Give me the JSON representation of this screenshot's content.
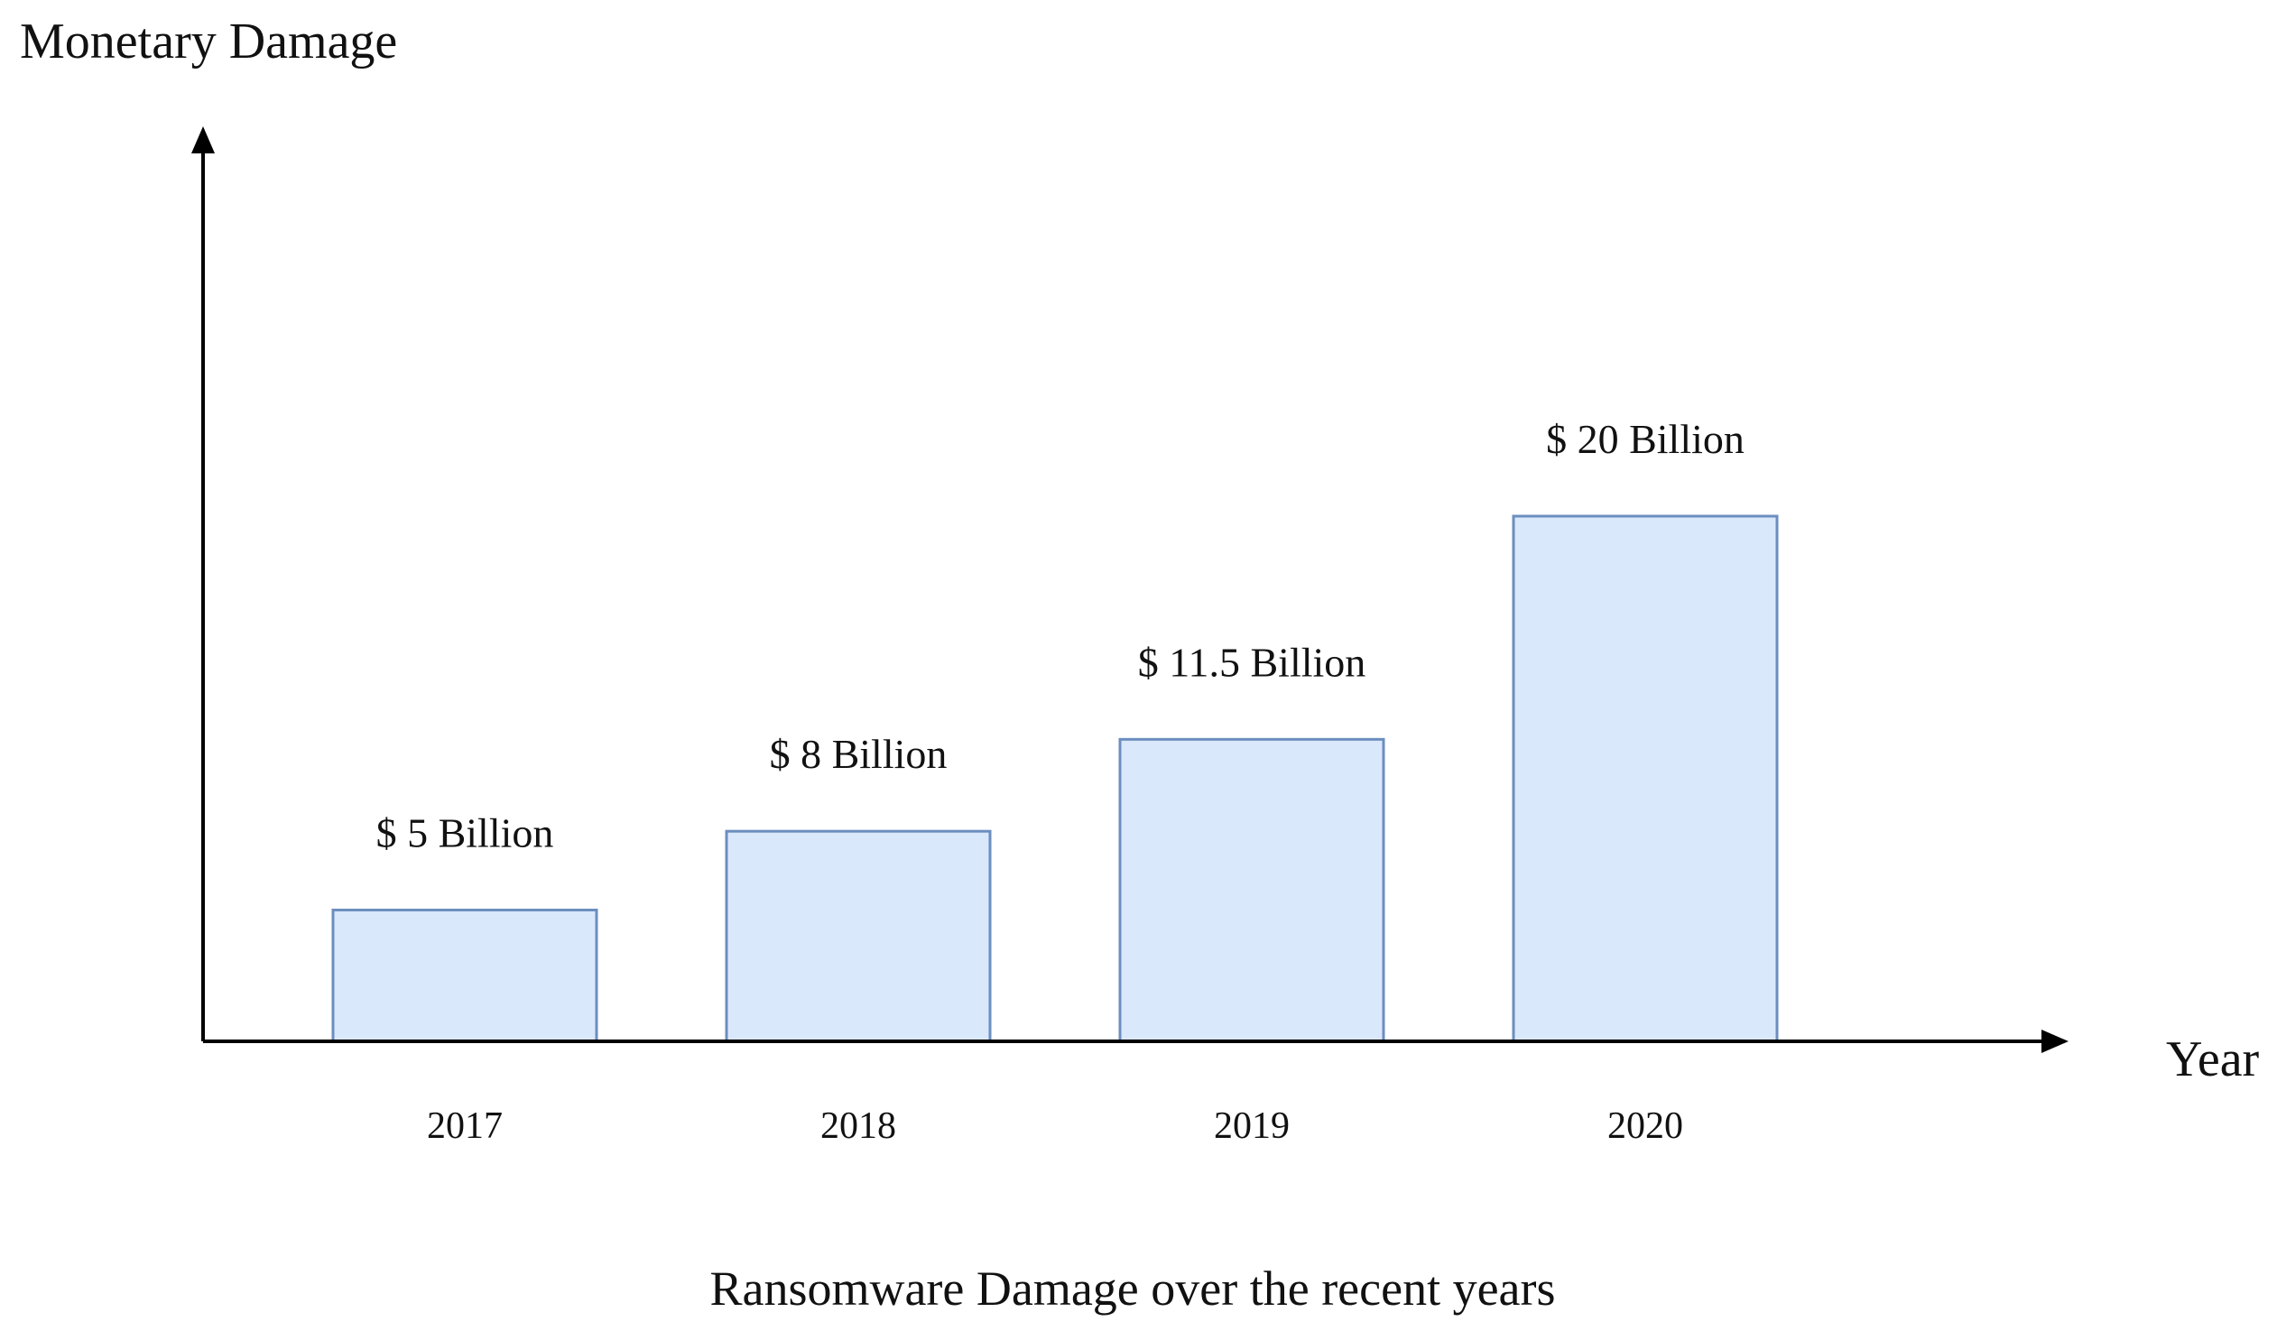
{
  "chart_data": {
    "type": "bar",
    "title": "Ransomware Damage over the recent years",
    "xlabel": "Year",
    "ylabel": "Monetary Damage",
    "categories": [
      "2017",
      "2018",
      "2019",
      "2020"
    ],
    "values": [
      5,
      8,
      11.5,
      20
    ],
    "value_unit": "Billion USD",
    "data_labels": [
      "$ 5 Billion",
      "$ 8 Billion",
      "$ 11.5 Billion",
      "$ 20 Billion"
    ],
    "ylim": [
      0,
      40
    ],
    "grid": false,
    "legend": "none",
    "colors": {
      "bar_fill": "#dae8fc",
      "bar_stroke": "#6c8ebf",
      "axis": "#000000",
      "text": "#111111"
    }
  }
}
